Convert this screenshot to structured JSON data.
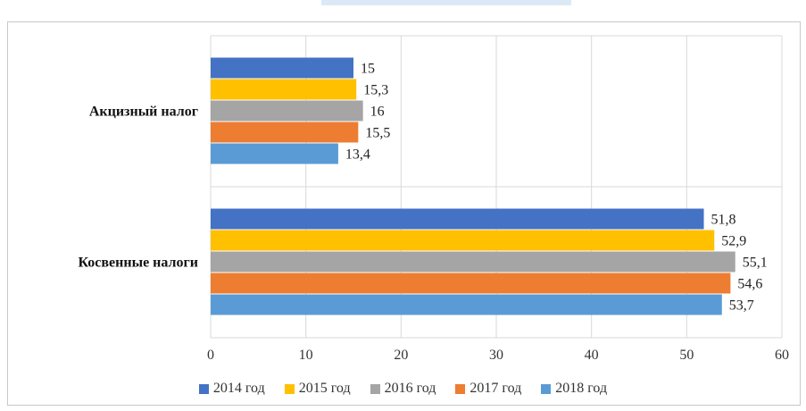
{
  "chart_data": {
    "type": "bar",
    "orientation": "horizontal",
    "categories": [
      "Акцизный налог",
      "Косвенные налоги"
    ],
    "series": [
      {
        "name": "2014 год",
        "color": "#4472c4",
        "values": [
          15,
          51.8
        ],
        "labels": [
          "15",
          "51,8"
        ]
      },
      {
        "name": "2015 год",
        "color": "#ffc000",
        "values": [
          15.3,
          52.9
        ],
        "labels": [
          "15,3",
          "52,9"
        ]
      },
      {
        "name": "2016 год",
        "color": "#a5a5a5",
        "values": [
          16,
          55.1
        ],
        "labels": [
          "16",
          "55,1"
        ]
      },
      {
        "name": "2017 год",
        "color": "#ed7d31",
        "values": [
          15.5,
          54.6
        ],
        "labels": [
          "15,5",
          "54,6"
        ]
      },
      {
        "name": "2018 год",
        "color": "#5b9bd5",
        "values": [
          13.4,
          53.7
        ],
        "labels": [
          "13,4",
          "53,7"
        ]
      }
    ],
    "xlim": [
      0,
      60
    ],
    "xticks": [
      "0",
      "10",
      "20",
      "30",
      "40",
      "50",
      "60"
    ],
    "grid": true,
    "legend_position": "bottom"
  }
}
